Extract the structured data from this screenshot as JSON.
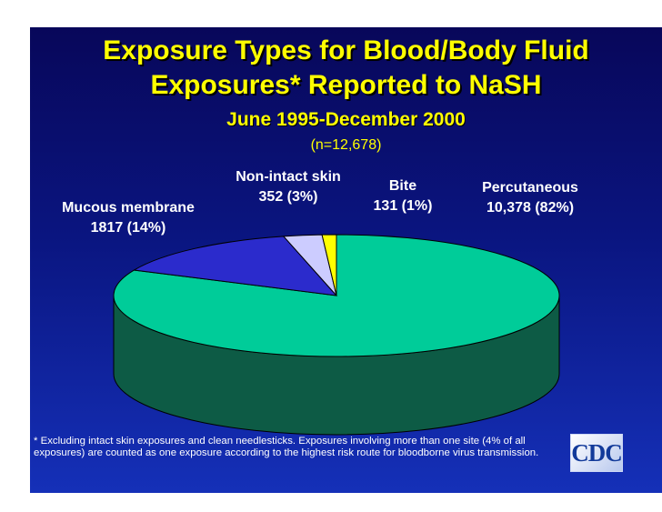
{
  "slide": {
    "title_line1": "Exposure Types for Blood/Body Fluid",
    "title_line2": "Exposures* Reported to NaSH",
    "subtitle": "June 1995-December 2000",
    "sample_size": "(n=12,678)",
    "footnote": "* Excluding intact skin exposures and clean needlesticks.  Exposures involving more than one site (4% of all exposures) are counted as one exposure according to the highest risk route for bloodborne virus transmission.",
    "logo_text": "CDC"
  },
  "chart_data": {
    "type": "pie",
    "style": "3d",
    "title": "Exposure Types for Blood/Body Fluid Exposures* Reported to NaSH",
    "subtitle": "June 1995-December 2000",
    "slices": [
      {
        "name": "Percutaneous",
        "value": 10378,
        "percent": 82,
        "value_label": "10,378 (82%)",
        "color": "#00cc99",
        "side_color": "#0d5b45"
      },
      {
        "name": "Mucous membrane",
        "value": 1817,
        "percent": 14,
        "value_label": "1817 (14%)",
        "color": "#2b2bcc",
        "side_color": "#161670"
      },
      {
        "name": "Non-intact skin",
        "value": 352,
        "percent": 3,
        "value_label": "352 (3%)",
        "color": "#ccccff",
        "side_color": "#7777aa"
      },
      {
        "name": "Bite",
        "value": 131,
        "percent": 1,
        "value_label": "131 (1%)",
        "color": "#ffff00",
        "side_color": "#999900"
      }
    ]
  }
}
